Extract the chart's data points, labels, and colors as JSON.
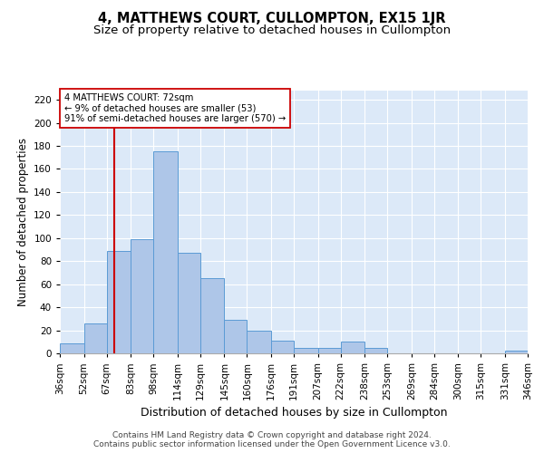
{
  "title": "4, MATTHEWS COURT, CULLOMPTON, EX15 1JR",
  "subtitle": "Size of property relative to detached houses in Cullompton",
  "xlabel": "Distribution of detached houses by size in Cullompton",
  "ylabel": "Number of detached properties",
  "bar_edges": [
    36,
    52,
    67,
    83,
    98,
    114,
    129,
    145,
    160,
    176,
    191,
    207,
    222,
    238,
    253,
    269,
    284,
    300,
    315,
    331,
    346
  ],
  "bar_heights": [
    9,
    26,
    89,
    99,
    175,
    87,
    65,
    29,
    20,
    11,
    5,
    5,
    10,
    5,
    0,
    0,
    0,
    0,
    0,
    2
  ],
  "bar_color": "#aec6e8",
  "bar_edge_color": "#5b9bd5",
  "vline_x": 72,
  "vline_color": "#cc0000",
  "annotation_text": "4 MATTHEWS COURT: 72sqm\n← 9% of detached houses are smaller (53)\n91% of semi-detached houses are larger (570) →",
  "annotation_box_color": "#ffffff",
  "annotation_box_edge_color": "#cc0000",
  "ylim": [
    0,
    228
  ],
  "yticks": [
    0,
    20,
    40,
    60,
    80,
    100,
    120,
    140,
    160,
    180,
    200,
    220
  ],
  "tick_labels": [
    "36sqm",
    "52sqm",
    "67sqm",
    "83sqm",
    "98sqm",
    "114sqm",
    "129sqm",
    "145sqm",
    "160sqm",
    "176sqm",
    "191sqm",
    "207sqm",
    "222sqm",
    "238sqm",
    "253sqm",
    "269sqm",
    "284sqm",
    "300sqm",
    "315sqm",
    "331sqm",
    "346sqm"
  ],
  "bg_color": "#dce9f8",
  "footer_line1": "Contains HM Land Registry data © Crown copyright and database right 2024.",
  "footer_line2": "Contains public sector information licensed under the Open Government Licence v3.0.",
  "title_fontsize": 10.5,
  "subtitle_fontsize": 9.5,
  "xlabel_fontsize": 9,
  "ylabel_fontsize": 8.5,
  "tick_fontsize": 7.5,
  "footer_fontsize": 6.5
}
